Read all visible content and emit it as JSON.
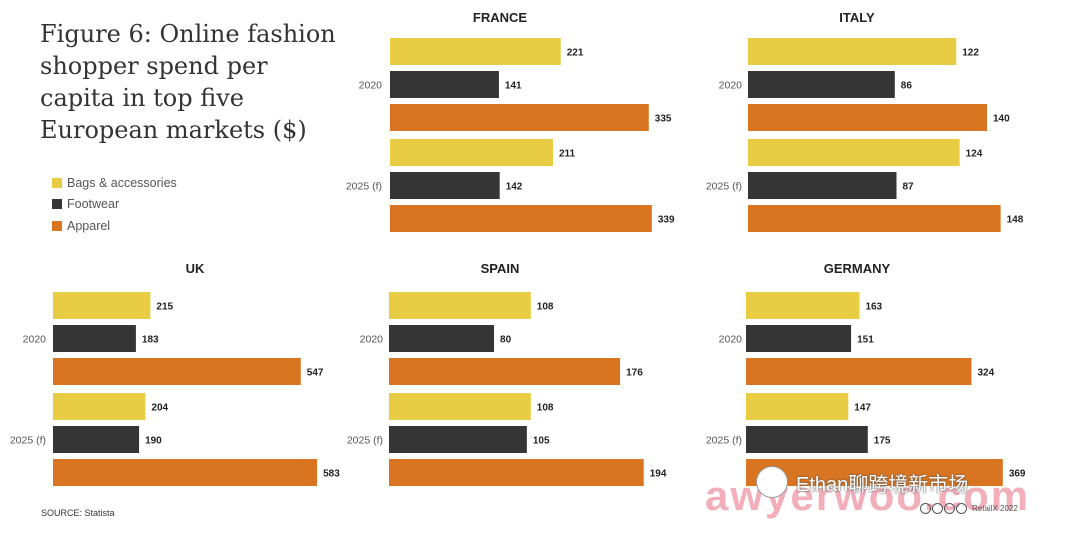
{
  "title": "Figure 6: Online fashion shopper spend per capita in top five European markets ($)",
  "legend": [
    {
      "label": "Bags & accessories",
      "color": "#e8cd44"
    },
    {
      "label": "Footwear",
      "color": "#353535"
    },
    {
      "label": "Apparel",
      "color": "#d97520"
    }
  ],
  "source": "SOURCE: Statista",
  "watermark": "Ethan聊跨境新市场",
  "watermark_url": "awyerwoo.com",
  "copyright": "RetailX 2022",
  "chart_data": [
    {
      "type": "bar",
      "orientation": "horizontal",
      "title": "FRANCE",
      "categories": [
        "2020",
        "2025 (f)"
      ],
      "series": [
        {
          "name": "Bags & accessories",
          "values": [
            221,
            211
          ]
        },
        {
          "name": "Footwear",
          "values": [
            141,
            142
          ]
        },
        {
          "name": "Apparel",
          "values": [
            335,
            339
          ]
        }
      ]
    },
    {
      "type": "bar",
      "orientation": "horizontal",
      "title": "ITALY",
      "categories": [
        "2020",
        "2025 (f)"
      ],
      "series": [
        {
          "name": "Bags & accessories",
          "values": [
            122,
            124
          ]
        },
        {
          "name": "Footwear",
          "values": [
            86,
            87
          ]
        },
        {
          "name": "Apparel",
          "values": [
            140,
            148
          ]
        }
      ]
    },
    {
      "type": "bar",
      "orientation": "horizontal",
      "title": "UK",
      "categories": [
        "2020",
        "2025 (f)"
      ],
      "series": [
        {
          "name": "Bags & accessories",
          "values": [
            215,
            204
          ]
        },
        {
          "name": "Footwear",
          "values": [
            183,
            190
          ]
        },
        {
          "name": "Apparel",
          "values": [
            547,
            583
          ]
        }
      ]
    },
    {
      "type": "bar",
      "orientation": "horizontal",
      "title": "SPAIN",
      "categories": [
        "2020",
        "2025 (f)"
      ],
      "series": [
        {
          "name": "Bags & accessories",
          "values": [
            108,
            108
          ]
        },
        {
          "name": "Footwear",
          "values": [
            80,
            105
          ]
        },
        {
          "name": "Apparel",
          "values": [
            176,
            194
          ]
        }
      ]
    },
    {
      "type": "bar",
      "orientation": "horizontal",
      "title": "GERMANY",
      "categories": [
        "2020",
        "2025 (f)"
      ],
      "series": [
        {
          "name": "Bags & accessories",
          "values": [
            163,
            147
          ]
        },
        {
          "name": "Footwear",
          "values": [
            151,
            175
          ]
        },
        {
          "name": "Apparel",
          "values": [
            324,
            369
          ]
        }
      ]
    }
  ]
}
